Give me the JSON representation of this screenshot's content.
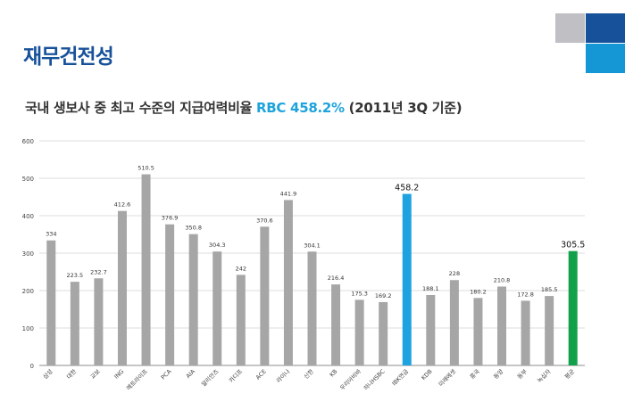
{
  "header": {
    "title": "재무건전성",
    "subtitle_prefix": "국내 생보사 중 최고 수준의  지급여력비율 ",
    "subtitle_highlight": "RBC  458.2%",
    "subtitle_suffix": " (2011년 3Q 기준)"
  },
  "colors": {
    "title": "#17519a",
    "highlight": "#1fa3dc",
    "bar_default": "#a6a6a6",
    "bar_highlight": "#1ea2e0",
    "bar_average": "#13a04a",
    "deco_gray": "#bfbfc4",
    "deco_navy": "#17519a",
    "deco_blue": "#1597d6"
  },
  "chart_data": {
    "type": "bar",
    "categories": [
      "삼성",
      "대한",
      "교보",
      "ING",
      "메트라이프",
      "PCA",
      "AIA",
      "알리안츠",
      "카디프",
      "ACE",
      "라이나",
      "신한",
      "KB",
      "우리아비바",
      "하나HSBC",
      "IBK연금",
      "KDB",
      "미래에셋",
      "흥국",
      "동양",
      "동부",
      "녹십자",
      "평균"
    ],
    "values": [
      334,
      223.5,
      232.7,
      412.6,
      510.5,
      376.9,
      350.8,
      304.3,
      242,
      370.6,
      441.9,
      304.1,
      216.4,
      175.3,
      169.2,
      458.2,
      188.1,
      228,
      180.2,
      210.8,
      172.8,
      185.5,
      305.5
    ],
    "value_labels": [
      "334",
      "223.5",
      "232.7",
      "412.6",
      "510.5",
      "376.9",
      "350.8",
      "304.3",
      "242",
      "370.6",
      "441.9",
      "304.1",
      "216.4",
      "175.3",
      "169.2",
      "458.2",
      "188.1",
      "228",
      "180.2",
      "210.8",
      "172.8",
      "185.5",
      "305.5"
    ],
    "highlight_index": 15,
    "average_index": 22,
    "ylim": [
      0,
      600
    ],
    "yticks": [
      "0",
      "100",
      "200",
      "300",
      "400",
      "500",
      "600"
    ],
    "grid": true,
    "legend": "none"
  }
}
